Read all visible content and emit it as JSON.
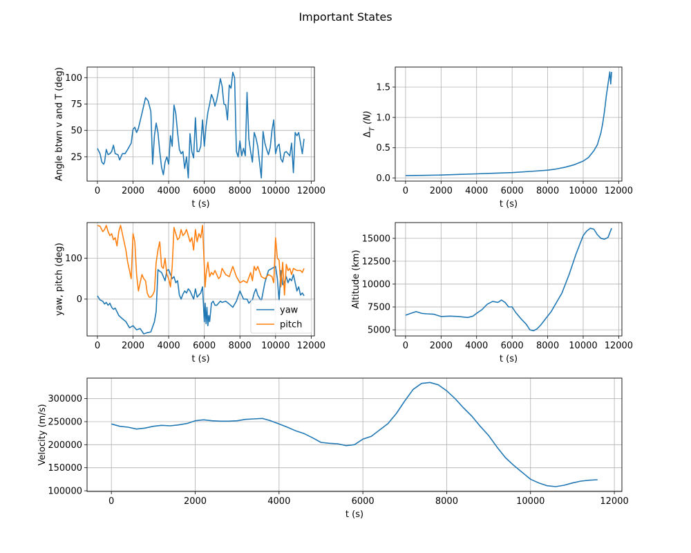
{
  "figure": {
    "title": "Important States"
  },
  "chart_data": [
    {
      "id": "angle",
      "type": "line",
      "xlabel": "t (s)",
      "ylabel": "Angle btwn v and T (deg)",
      "xlim": [
        -580,
        12180
      ],
      "ylim": [
        2,
        110
      ],
      "xticks": [
        0,
        2000,
        4000,
        6000,
        8000,
        10000,
        12000
      ],
      "yticks": [
        25,
        50,
        75,
        100
      ],
      "grid": true,
      "series": [
        {
          "color": "#1f77b4",
          "x": [
            0,
            150,
            250,
            350,
            400,
            500,
            600,
            700,
            800,
            900,
            1000,
            1150,
            1250,
            1400,
            1550,
            1700,
            1900,
            2000,
            2100,
            2200,
            2300,
            2500,
            2700,
            2850,
            3000,
            3100,
            3200,
            3300,
            3400,
            3500,
            3600,
            3700,
            3800,
            3900,
            4000,
            4100,
            4200,
            4300,
            4400,
            4500,
            4600,
            4700,
            4800,
            4900,
            5000,
            5100,
            5200,
            5300,
            5400,
            5500,
            5600,
            5700,
            5800,
            5900,
            6000,
            6100,
            6200,
            6300,
            6400,
            6500,
            6600,
            6700,
            6800,
            6900,
            7000,
            7100,
            7200,
            7300,
            7400,
            7500,
            7600,
            7700,
            7800,
            7900,
            8000,
            8100,
            8200,
            8300,
            8400,
            8500,
            8600,
            8700,
            8800,
            8900,
            9000,
            9100,
            9200,
            9300,
            9400,
            9500,
            9600,
            9700,
            9800,
            9900,
            10000,
            10100,
            10200,
            10300,
            10400,
            10500,
            10600,
            10700,
            10800,
            10900,
            11000,
            11100,
            11200,
            11300,
            11400,
            11500,
            11600
          ],
          "y": [
            33,
            28,
            20,
            18,
            20,
            32,
            27,
            28,
            30,
            36,
            28,
            27,
            22,
            28,
            28,
            32,
            38,
            51,
            53,
            48,
            52,
            66,
            81,
            78,
            68,
            18,
            45,
            57,
            48,
            30,
            15,
            8,
            20,
            25,
            18,
            45,
            35,
            74,
            66,
            48,
            32,
            28,
            30,
            14,
            25,
            5,
            47,
            30,
            24,
            62,
            30,
            30,
            35,
            60,
            35,
            54,
            67,
            75,
            84,
            80,
            73,
            79,
            88,
            99,
            92,
            75,
            74,
            60,
            93,
            90,
            105,
            100,
            30,
            25,
            40,
            26,
            33,
            26,
            86,
            42,
            30,
            20,
            48,
            43,
            35,
            20,
            5,
            49,
            38,
            32,
            27,
            34,
            50,
            60,
            28,
            35,
            37,
            23,
            20,
            29,
            30,
            28,
            26,
            38,
            10,
            48,
            45,
            48,
            38,
            28,
            42
          ]
        }
      ]
    },
    {
      "id": "deltaT",
      "type": "line",
      "xlabel": "t (s)",
      "ylabel": "ΔT (N)",
      "xlim": [
        -580,
        12180
      ],
      "ylim": [
        -0.05,
        1.83
      ],
      "xticks": [
        0,
        2000,
        4000,
        6000,
        8000,
        10000,
        12000
      ],
      "yticks": [
        0.0,
        0.5,
        1.0,
        1.5
      ],
      "ytick_labels": [
        "0.0",
        "0.5",
        "1.0",
        "1.5"
      ],
      "grid": true,
      "series": [
        {
          "color": "#1f77b4",
          "x": [
            0,
            1000,
            2000,
            3000,
            4000,
            5000,
            6000,
            7000,
            8000,
            8500,
            9000,
            9500,
            10000,
            10300,
            10600,
            10800,
            11000,
            11100,
            11200,
            11300,
            11400,
            11500,
            11550,
            11600
          ],
          "y": [
            0.04,
            0.045,
            0.05,
            0.06,
            0.07,
            0.08,
            0.09,
            0.11,
            0.13,
            0.15,
            0.18,
            0.22,
            0.28,
            0.34,
            0.45,
            0.55,
            0.75,
            0.9,
            1.1,
            1.35,
            1.55,
            1.75,
            1.55,
            1.75
          ]
        }
      ]
    },
    {
      "id": "yawpitch",
      "type": "line",
      "xlabel": "t (s)",
      "ylabel": "yaw, pitch (deg)",
      "xlim": [
        -580,
        12180
      ],
      "ylim": [
        -90,
        187
      ],
      "xticks": [
        0,
        2000,
        4000,
        6000,
        8000,
        10000,
        12000
      ],
      "yticks": [
        0,
        100
      ],
      "grid": true,
      "legend": {
        "position": "lower-right"
      },
      "series": [
        {
          "name": "yaw",
          "color": "#1f77b4",
          "x": [
            0,
            150,
            300,
            400,
            500,
            600,
            700,
            800,
            900,
            1000,
            1200,
            1400,
            1600,
            1800,
            2000,
            2200,
            2400,
            2600,
            2800,
            3000,
            3200,
            3300,
            3400,
            3500,
            3600,
            3700,
            3800,
            3900,
            4000,
            4100,
            4200,
            4300,
            4400,
            4500,
            4600,
            4700,
            4800,
            4900,
            5000,
            5100,
            5200,
            5300,
            5400,
            5500,
            5600,
            5700,
            5800,
            5900,
            6000,
            6050,
            6100,
            6150,
            6200,
            6250,
            6300,
            6400,
            6500,
            6600,
            6700,
            6800,
            6900,
            7000,
            7200,
            7400,
            7600,
            7800,
            8000,
            8200,
            8400,
            8500,
            8600,
            8700,
            8800,
            8900,
            9000,
            9200,
            9400,
            9600,
            9800,
            10000,
            10100,
            10200,
            10300,
            10400,
            10500,
            10600,
            10700,
            10800,
            10900,
            11000,
            11100,
            11200,
            11300,
            11400,
            11500,
            11600
          ],
          "y": [
            8,
            -2,
            -5,
            -12,
            -8,
            -15,
            -10,
            -20,
            -25,
            -22,
            -40,
            -48,
            -55,
            -70,
            -65,
            -75,
            -72,
            -85,
            -82,
            -80,
            -55,
            -30,
            72,
            68,
            65,
            55,
            45,
            70,
            72,
            60,
            50,
            55,
            40,
            45,
            10,
            0,
            12,
            20,
            15,
            25,
            20,
            10,
            0,
            25,
            5,
            10,
            15,
            30,
            -55,
            -10,
            -60,
            -20,
            -65,
            -40,
            -55,
            -10,
            -5,
            -15,
            -15,
            -10,
            -5,
            -8,
            -5,
            -12,
            -20,
            -5,
            20,
            0,
            0,
            -10,
            -5,
            -2,
            15,
            25,
            10,
            -5,
            40,
            70,
            75,
            80,
            50,
            -5,
            70,
            35,
            40,
            55,
            40,
            50,
            45,
            60,
            40,
            20,
            30,
            10,
            15,
            8
          ]
        },
        {
          "name": "pitch",
          "color": "#ff7f0e",
          "x": [
            0,
            150,
            300,
            400,
            500,
            600,
            700,
            800,
            900,
            1000,
            1100,
            1200,
            1300,
            1400,
            1500,
            1600,
            1700,
            1800,
            1900,
            2000,
            2100,
            2200,
            2300,
            2400,
            2500,
            2600,
            2700,
            2800,
            2900,
            3000,
            3100,
            3200,
            3300,
            3400,
            3500,
            3600,
            3700,
            3800,
            3900,
            4000,
            4100,
            4200,
            4300,
            4400,
            4500,
            4600,
            4700,
            4800,
            4900,
            5000,
            5100,
            5200,
            5300,
            5400,
            5500,
            5600,
            5700,
            5800,
            5900,
            6000,
            6050,
            6100,
            6200,
            6300,
            6400,
            6500,
            6600,
            6700,
            6800,
            6900,
            7000,
            7200,
            7400,
            7600,
            7800,
            8000,
            8200,
            8400,
            8600,
            8700,
            8800,
            8900,
            9000,
            9200,
            9400,
            9600,
            9800,
            9900,
            10000,
            10100,
            10200,
            10300,
            10400,
            10500,
            10600,
            10700,
            10800,
            10900,
            11000,
            11200,
            11400,
            11500,
            11600
          ],
          "y": [
            180,
            178,
            165,
            170,
            180,
            165,
            155,
            160,
            145,
            150,
            130,
            165,
            180,
            160,
            140,
            120,
            90,
            70,
            50,
            160,
            140,
            60,
            20,
            40,
            60,
            50,
            45,
            15,
            5,
            5,
            10,
            20,
            90,
            120,
            140,
            80,
            75,
            100,
            60,
            50,
            30,
            80,
            175,
            160,
            145,
            150,
            170,
            155,
            160,
            170,
            155,
            140,
            150,
            120,
            170,
            140,
            160,
            150,
            180,
            80,
            30,
            60,
            90,
            55,
            65,
            60,
            70,
            60,
            50,
            55,
            75,
            60,
            55,
            80,
            55,
            40,
            45,
            40,
            65,
            45,
            80,
            70,
            80,
            55,
            50,
            60,
            55,
            40,
            150,
            100,
            95,
            30,
            90,
            10,
            85,
            70,
            75,
            60,
            75,
            70,
            70,
            65,
            75
          ]
        }
      ]
    },
    {
      "id": "altitude",
      "type": "line",
      "xlabel": "t (s)",
      "ylabel": "Altitude (km)",
      "xlim": [
        -580,
        12180
      ],
      "ylim": [
        4330,
        16720
      ],
      "xticks": [
        0,
        2000,
        4000,
        6000,
        8000,
        10000,
        12000
      ],
      "yticks": [
        5000,
        7500,
        10000,
        12500,
        15000
      ],
      "grid": true,
      "series": [
        {
          "color": "#1f77b4",
          "x": [
            0,
            300,
            600,
            900,
            1200,
            1600,
            2000,
            2500,
            3000,
            3500,
            3800,
            4000,
            4300,
            4600,
            4900,
            5200,
            5400,
            5600,
            5800,
            6000,
            6200,
            6500,
            6800,
            7000,
            7200,
            7400,
            7600,
            7800,
            8000,
            8200,
            8500,
            8800,
            9200,
            9600,
            10000,
            10200,
            10400,
            10600,
            10800,
            11000,
            11200,
            11400,
            11600
          ],
          "y": [
            6600,
            6800,
            7000,
            6800,
            6750,
            6700,
            6450,
            6500,
            6450,
            6350,
            6500,
            6800,
            7200,
            7800,
            8100,
            8000,
            8250,
            8000,
            7500,
            7500,
            6900,
            6200,
            5600,
            5000,
            4900,
            5100,
            5500,
            6000,
            6500,
            7000,
            8000,
            9000,
            11000,
            13300,
            15300,
            15800,
            16100,
            16000,
            15400,
            15000,
            14900,
            15100,
            16100
          ]
        }
      ]
    },
    {
      "id": "velocity",
      "type": "line",
      "xlabel": "t (s)",
      "ylabel": "Velocity (m/s)",
      "xlim": [
        -580,
        12180
      ],
      "ylim": [
        98500,
        344500
      ],
      "xticks": [
        0,
        2000,
        4000,
        6000,
        8000,
        10000,
        12000
      ],
      "yticks": [
        100000,
        150000,
        200000,
        250000,
        300000
      ],
      "grid": true,
      "series": [
        {
          "color": "#1f77b4",
          "x": [
            0,
            200,
            400,
            600,
            800,
            1000,
            1200,
            1400,
            1600,
            1800,
            2000,
            2200,
            2400,
            2600,
            2800,
            3000,
            3200,
            3400,
            3600,
            3800,
            4000,
            4200,
            4400,
            4600,
            4800,
            5000,
            5200,
            5400,
            5600,
            5800,
            6000,
            6200,
            6400,
            6600,
            6800,
            7000,
            7200,
            7400,
            7600,
            7800,
            8000,
            8200,
            8400,
            8600,
            8800,
            9000,
            9200,
            9400,
            9600,
            9800,
            10000,
            10200,
            10400,
            10600,
            10800,
            11000,
            11200,
            11400,
            11600
          ],
          "y": [
            245000,
            240000,
            238000,
            234000,
            236000,
            240000,
            242000,
            241000,
            243000,
            246000,
            252000,
            254000,
            252000,
            251000,
            251000,
            252000,
            255000,
            256000,
            257000,
            252000,
            245000,
            238000,
            230000,
            224000,
            215000,
            205000,
            203000,
            202000,
            198000,
            200000,
            212000,
            218000,
            232000,
            246000,
            268000,
            295000,
            320000,
            333000,
            335000,
            330000,
            317000,
            300000,
            280000,
            262000,
            240000,
            220000,
            195000,
            172000,
            155000,
            140000,
            125000,
            117000,
            111000,
            109000,
            112000,
            117000,
            121000,
            123000,
            124000
          ]
        }
      ]
    }
  ]
}
